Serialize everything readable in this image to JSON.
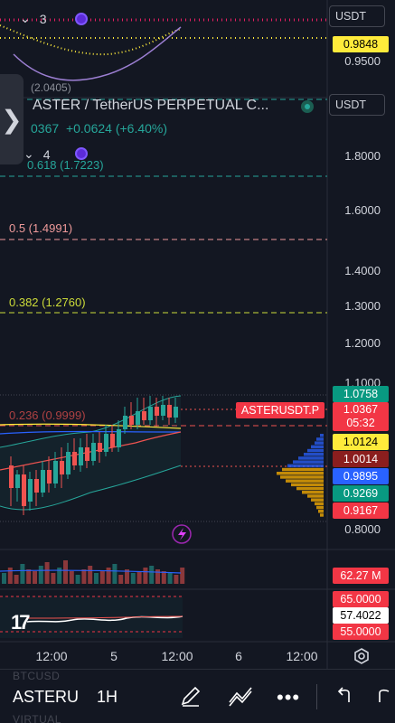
{
  "header": {
    "pane1_count": "3",
    "pane2_count": "4",
    "symbol_title": "ASTER / TetherUS PERPETUAL C...",
    "price_partial": "0367",
    "change": "+0.0624 (+6.40%)",
    "prev_pane_partial": "(2.0405)"
  },
  "units": [
    "USDT",
    "USDT"
  ],
  "top_axis": {
    "tag_value": "0.9848",
    "label": "0.9500"
  },
  "price_axis": [
    "1.8000",
    "1.6000",
    "1.4000",
    "1.3000",
    "1.2000",
    "1.1000",
    "0.8000"
  ],
  "fib_levels": [
    {
      "label": "0.618 (1.7223)",
      "color": "#26a69a"
    },
    {
      "label": "0.5 (1.4991)",
      "color": "#ef9a9a"
    },
    {
      "label": "0.382 (1.2760)",
      "color": "#cddc39"
    },
    {
      "label": "0.236 (0.9999)",
      "color": "#ef5350"
    }
  ],
  "price_tags": [
    {
      "value": "1.0758",
      "bg": "#089981"
    },
    {
      "value": "1.0124",
      "bg": "#ffeb3b",
      "fg": "#000000"
    },
    {
      "value": "1.0014",
      "bg": "#8b1e1e"
    },
    {
      "value": "0.9895",
      "bg": "#2962ff"
    },
    {
      "value": "0.9269",
      "bg": "#089981"
    },
    {
      "value": "0.9167",
      "bg": "#f23645"
    }
  ],
  "symbol_tag": {
    "name": "ASTERUSDT.P",
    "price": "1.0367",
    "countdown": "05:32"
  },
  "volume_tag": "62.27 M",
  "rsi_tags": [
    {
      "value": "65.0000",
      "bg": "#f23645",
      "fg": "#ffffff"
    },
    {
      "value": "57.4022",
      "bg": "#ffffff",
      "fg": "#000000"
    },
    {
      "value": "55.0000",
      "bg": "#f23645",
      "fg": "#ffffff"
    }
  ],
  "time_axis": [
    "12:00",
    "5",
    "12:00",
    "6",
    "12:00"
  ],
  "toolbar": {
    "symbol": "ASTERU",
    "interval": "1H",
    "ghost_top": "BTCUSD",
    "ghost_bottom": "VIRTUAL"
  },
  "colors": {
    "up": "#26a69a",
    "down": "#ef5350",
    "background": "#131722"
  }
}
